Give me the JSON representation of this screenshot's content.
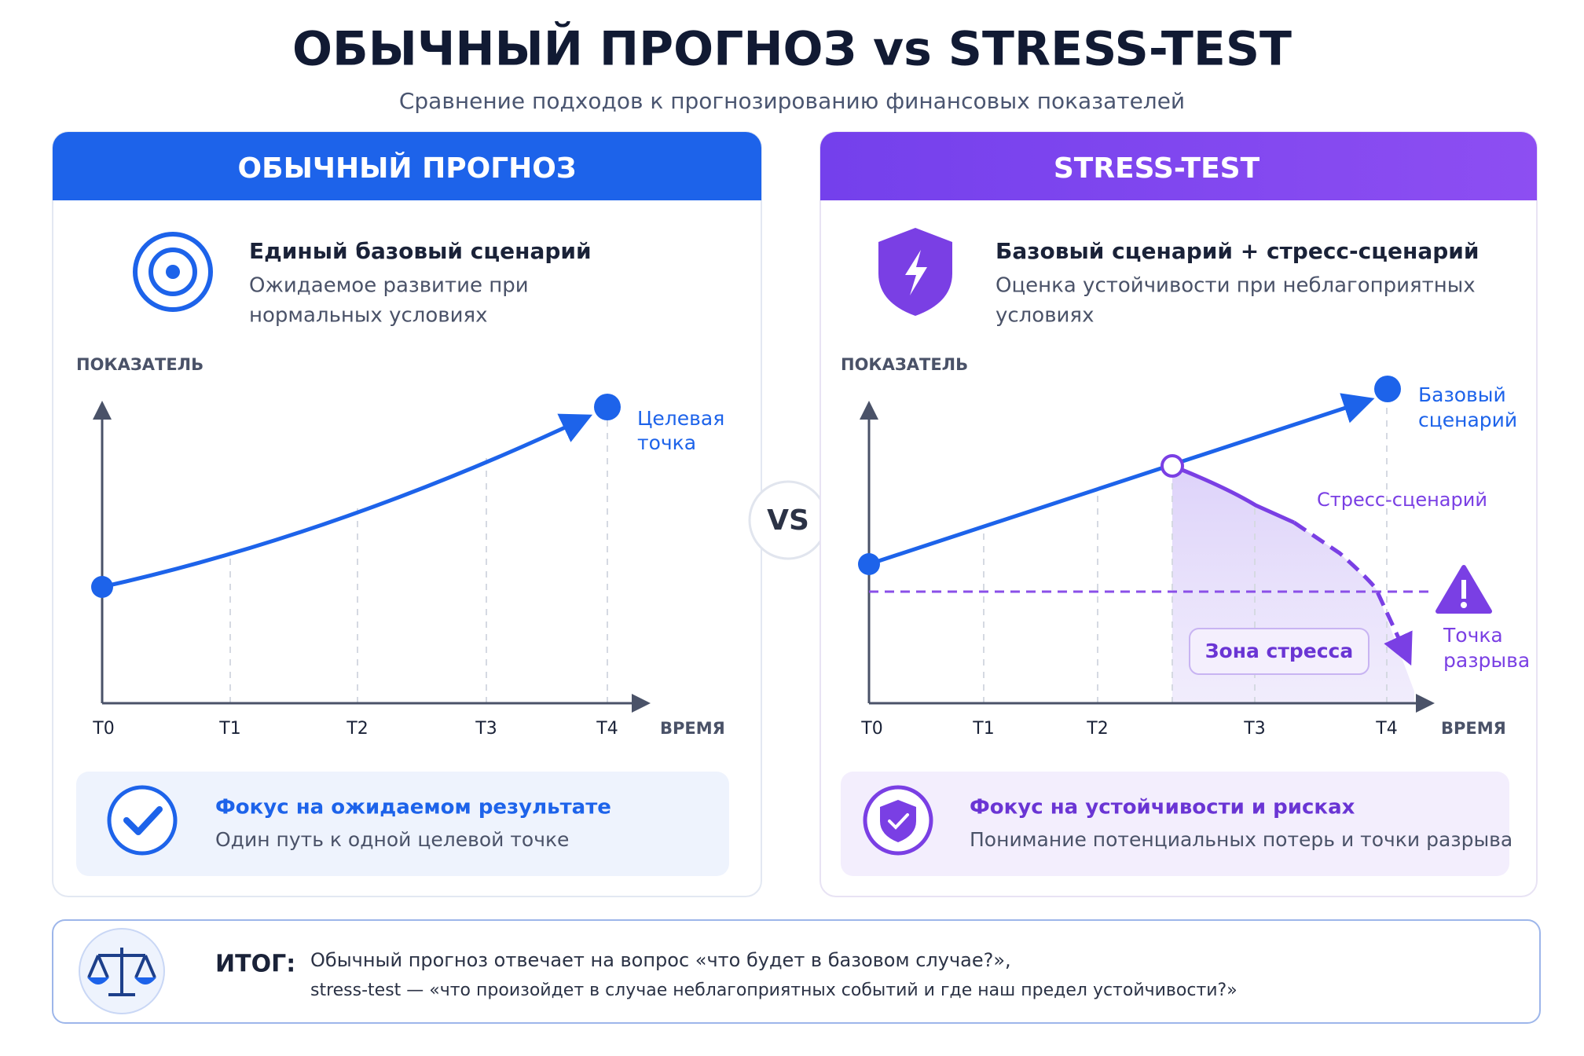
{
  "header": {
    "title": "ОБЫЧНЫЙ ПРОГНОЗ vs STRESS-TEST",
    "subtitle": "Сравнение подходов к прогнозированию финансовых показателей"
  },
  "vs": "VS",
  "panels": [
    {
      "title": "ОБЫЧНЫЙ ПРОГНОЗ",
      "heading": "Единый базовый сценарий",
      "description": [
        "Ожидаемое развитие при",
        "нормальных условиях"
      ],
      "y_axis_label": "ПОКАЗАТЕЛЬ",
      "x_axis_label": "ВРЕМЯ",
      "x_ticks": [
        "T0",
        "T1",
        "T2",
        "T3",
        "T4"
      ],
      "target_label": [
        "Целевая",
        "точка"
      ],
      "focus": {
        "title": "Фокус на ожидаемом результате",
        "text": "Один путь к одной целевой точке"
      }
    },
    {
      "title": "STRESS-TEST",
      "heading": "Базовый сценарий + стресс-сценарий",
      "description": [
        "Оценка устойчивости при неблагоприятных",
        "условиях"
      ],
      "y_axis_label": "ПОКАЗАТЕЛЬ",
      "x_axis_label": "ВРЕМЯ",
      "x_ticks": [
        "T0",
        "T1",
        "T2",
        "T3",
        "T4"
      ],
      "base_label": [
        "Базовый",
        "сценарий"
      ],
      "stress_label": "Стресс-сценарий",
      "zone_label": "Зона стресса",
      "break_label": [
        "Точка",
        "разрыва"
      ],
      "focus": {
        "title": "Фокус на устойчивости и рисках",
        "text": "Понимание потенциальных потерь и точки разрыва"
      }
    }
  ],
  "summary": {
    "label": "ИТОГ:",
    "lines": [
      "Обычный прогноз отвечает на вопрос «что будет в базовом случае?»,",
      "stress-test — «что произойдет в случае неблагоприятных событий и где наш предел устойчивости?»"
    ]
  }
}
